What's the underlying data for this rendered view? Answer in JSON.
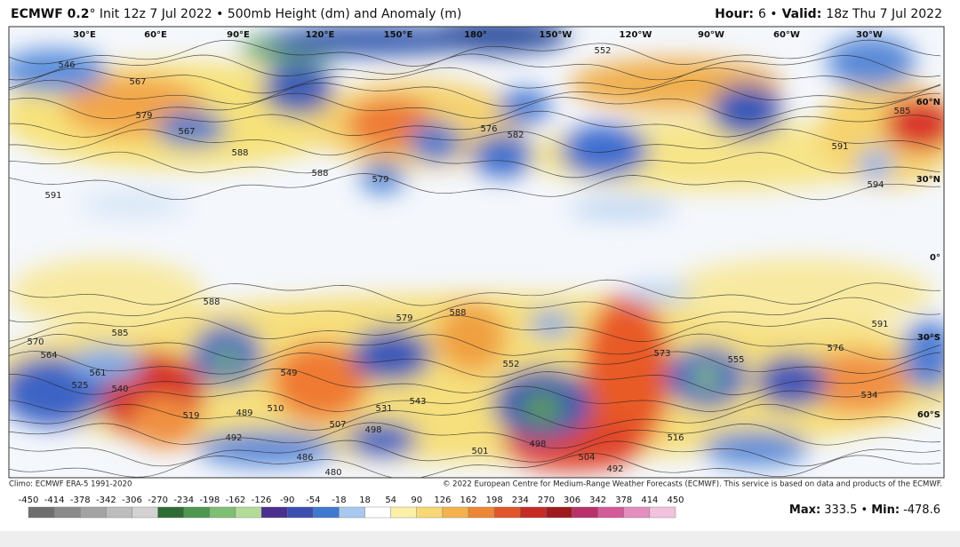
{
  "header": {
    "model": "ECMWF 0.2",
    "description": "° Init 12z 7 Jul 2022 • 500mb Height (dm) and Anomaly (m)",
    "hour_label": "Hour:",
    "hour_value": "6 •",
    "valid_label": "Valid:",
    "valid_value": "18z Thu 7 Jul 2022"
  },
  "map": {
    "longitude_labels": [
      "30°E",
      "60°E",
      "90°E",
      "120°E",
      "150°E",
      "180°",
      "150°W",
      "120°W",
      "90°W",
      "60°W",
      "30°W"
    ],
    "latitude_labels": [
      "60°N",
      "30°N",
      "0°",
      "30°S",
      "60°S"
    ],
    "contour_labels": [
      546,
      567,
      579,
      567,
      588,
      591,
      579,
      552,
      576,
      582,
      591,
      585,
      594,
      588,
      579,
      588,
      585,
      588,
      591,
      576,
      570,
      564,
      525,
      519,
      489,
      492,
      486,
      480,
      510,
      531,
      507,
      498,
      543,
      552,
      501,
      498,
      504,
      492,
      516,
      573,
      555,
      534,
      549,
      561,
      540
    ]
  },
  "footer": {
    "climo": "Climo: ECMWF ERA-5 1991-2020",
    "copyright": "© 2022 European Centre for Medium-Range Weather Forecasts (ECMWF). This service is based on data and products of the ECMWF."
  },
  "colorbar": {
    "ticks": [
      -450,
      -414,
      -378,
      -342,
      -306,
      -270,
      -234,
      -198,
      -162,
      -126,
      -90,
      -54,
      -18,
      18,
      54,
      90,
      126,
      162,
      198,
      234,
      270,
      306,
      342,
      378,
      414,
      450
    ],
    "colors": [
      "#6e6e6e",
      "#8a8a8a",
      "#a3a3a3",
      "#bdbdbd",
      "#d2d2d2",
      "#2f6b35",
      "#4f9650",
      "#7fbf73",
      "#b3dc9a",
      "#4a2f8f",
      "#3a4fb0",
      "#3f78cf",
      "#a9c8f0",
      "#ffffff",
      "#fbf0a8",
      "#f8d874",
      "#f4b24e",
      "#ee8636",
      "#e2552a",
      "#c62a24",
      "#9e1a1e",
      "#b8326a",
      "#d45a9a",
      "#e58ec0",
      "#f2c2dd"
    ]
  },
  "extremes": {
    "max_label": "Max:",
    "max_value": "333.5 •",
    "min_label": "Min:",
    "min_value": "-478.6"
  }
}
